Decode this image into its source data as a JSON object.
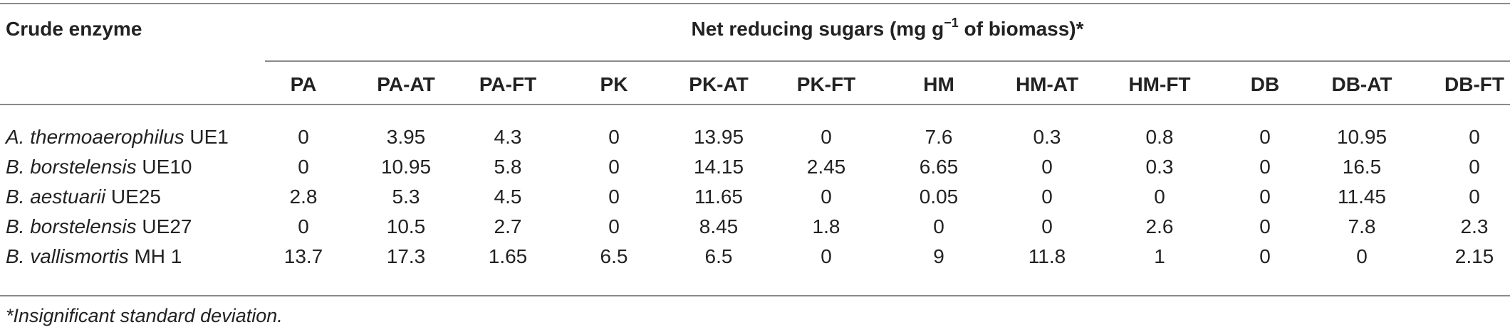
{
  "table": {
    "header": {
      "row_label": "Crude enzyme",
      "group_title_pre": "Net reducing sugars (mg g",
      "group_title_sup": "−1",
      "group_title_post": " of biomass)*"
    },
    "columns": [
      "PA",
      "PA-AT",
      "PA-FT",
      "PK",
      "PK-AT",
      "PK-FT",
      "HM",
      "HM-AT",
      "HM-FT",
      "DB",
      "DB-AT",
      "DB-FT"
    ],
    "rows": [
      {
        "genus": "A. thermoaerophilus",
        "strain": " UE1",
        "values": [
          "0",
          "3.95",
          "4.3",
          "0",
          "13.95",
          "0",
          "7.6",
          "0.3",
          "0.8",
          "0",
          "10.95",
          "0"
        ]
      },
      {
        "genus": "B. borstelensis",
        "strain": " UE10",
        "values": [
          "0",
          "10.95",
          "5.8",
          "0",
          "14.15",
          "2.45",
          "6.65",
          "0",
          "0.3",
          "0",
          "16.5",
          "0"
        ]
      },
      {
        "genus": "B. aestuarii",
        "strain": " UE25",
        "values": [
          "2.8",
          "5.3",
          "4.5",
          "0",
          "11.65",
          "0",
          "0.05",
          "0",
          "0",
          "0",
          "11.45",
          "0"
        ]
      },
      {
        "genus": "B. borstelensis",
        "strain": " UE27",
        "values": [
          "0",
          "10.5",
          "2.7",
          "0",
          "8.45",
          "1.8",
          "0",
          "0",
          "2.6",
          "0",
          "7.8",
          "2.3"
        ]
      },
      {
        "genus": "B. vallismortis",
        "strain": " MH 1",
        "values": [
          "13.7",
          "17.3",
          "1.65",
          "6.5",
          "6.5",
          "0",
          "9",
          "11.8",
          "1",
          "0",
          "0",
          "2.15"
        ]
      }
    ],
    "footnote": "*Insignificant standard deviation."
  }
}
